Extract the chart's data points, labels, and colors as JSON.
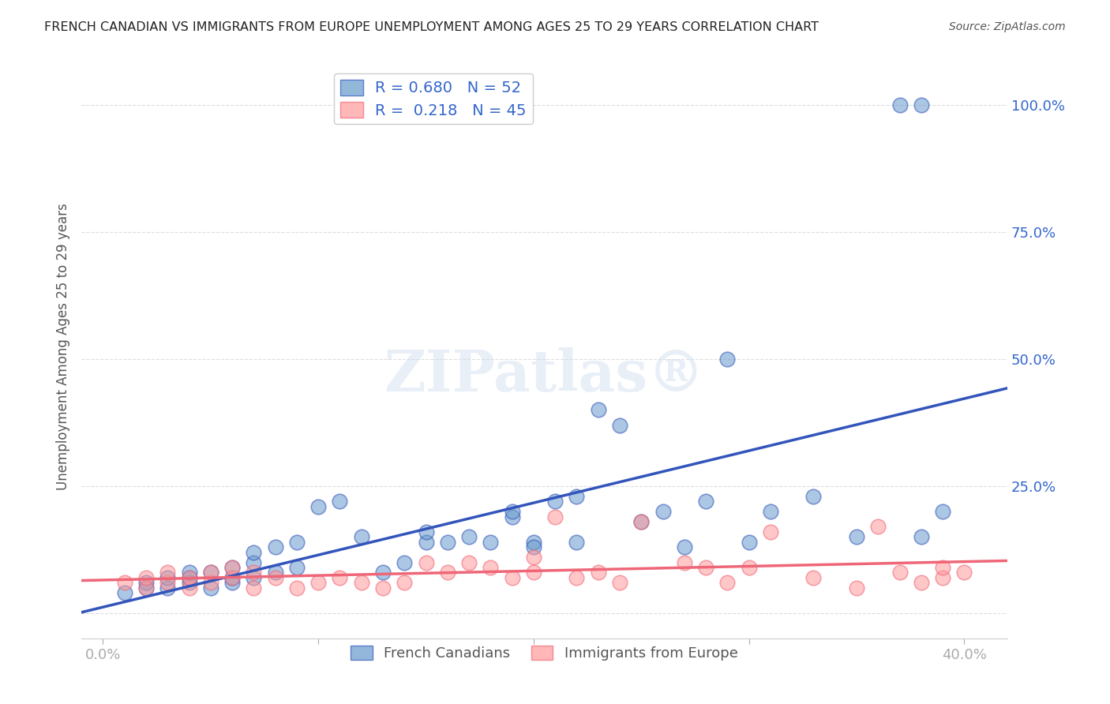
{
  "title": "FRENCH CANADIAN VS IMMIGRANTS FROM EUROPE UNEMPLOYMENT AMONG AGES 25 TO 29 YEARS CORRELATION CHART",
  "source": "Source: ZipAtlas.com",
  "xlabel_bottom": "",
  "ylabel": "Unemployment Among Ages 25 to 29 years",
  "x_ticks": [
    0.0,
    0.1,
    0.2,
    0.3,
    0.4
  ],
  "x_tick_labels": [
    "0.0%",
    "",
    "",
    "",
    "40.0%"
  ],
  "y_ticks": [
    0.0,
    0.25,
    0.5,
    0.75,
    1.0
  ],
  "y_tick_labels": [
    "",
    "25.0%",
    "50.0%",
    "75.0%",
    "100.0%"
  ],
  "legend_label1": "French Canadians",
  "legend_label2": "Immigrants from Europe",
  "r1": 0.68,
  "n1": 52,
  "r2": 0.218,
  "n2": 45,
  "blue_color": "#6699CC",
  "pink_color": "#FF9999",
  "blue_line_color": "#3355BB",
  "pink_line_color": "#EE6677",
  "title_color": "#222222",
  "axis_label_color": "#444444",
  "tick_color_right": "#5599FF",
  "background_color": "#FFFFFF",
  "grid_color": "#DDDDDD",
  "watermark": "ZIPatlas",
  "blue_x": [
    0.01,
    0.02,
    0.02,
    0.03,
    0.03,
    0.04,
    0.04,
    0.04,
    0.05,
    0.05,
    0.06,
    0.06,
    0.06,
    0.07,
    0.07,
    0.07,
    0.08,
    0.08,
    0.09,
    0.09,
    0.1,
    0.11,
    0.12,
    0.13,
    0.14,
    0.15,
    0.15,
    0.16,
    0.17,
    0.18,
    0.19,
    0.19,
    0.2,
    0.2,
    0.21,
    0.22,
    0.22,
    0.23,
    0.24,
    0.25,
    0.26,
    0.27,
    0.28,
    0.29,
    0.3,
    0.31,
    0.33,
    0.35,
    0.37,
    0.38,
    0.38,
    0.39
  ],
  "blue_y": [
    0.04,
    0.05,
    0.06,
    0.05,
    0.07,
    0.06,
    0.07,
    0.08,
    0.05,
    0.08,
    0.06,
    0.07,
    0.09,
    0.07,
    0.1,
    0.12,
    0.08,
    0.13,
    0.09,
    0.14,
    0.21,
    0.22,
    0.15,
    0.08,
    0.1,
    0.14,
    0.16,
    0.14,
    0.15,
    0.14,
    0.19,
    0.2,
    0.14,
    0.13,
    0.22,
    0.23,
    0.14,
    0.4,
    0.37,
    0.18,
    0.2,
    0.13,
    0.22,
    0.5,
    0.14,
    0.2,
    0.23,
    0.15,
    1.0,
    0.15,
    1.0,
    0.2
  ],
  "pink_x": [
    0.01,
    0.02,
    0.02,
    0.03,
    0.03,
    0.04,
    0.04,
    0.05,
    0.05,
    0.06,
    0.06,
    0.07,
    0.07,
    0.08,
    0.09,
    0.1,
    0.11,
    0.12,
    0.13,
    0.14,
    0.15,
    0.16,
    0.17,
    0.18,
    0.19,
    0.2,
    0.2,
    0.21,
    0.22,
    0.23,
    0.24,
    0.25,
    0.27,
    0.28,
    0.29,
    0.3,
    0.31,
    0.33,
    0.35,
    0.36,
    0.37,
    0.38,
    0.39,
    0.39,
    0.4
  ],
  "pink_y": [
    0.06,
    0.05,
    0.07,
    0.06,
    0.08,
    0.05,
    0.07,
    0.06,
    0.08,
    0.07,
    0.09,
    0.08,
    0.05,
    0.07,
    0.05,
    0.06,
    0.07,
    0.06,
    0.05,
    0.06,
    0.1,
    0.08,
    0.1,
    0.09,
    0.07,
    0.11,
    0.08,
    0.19,
    0.07,
    0.08,
    0.06,
    0.18,
    0.1,
    0.09,
    0.06,
    0.09,
    0.16,
    0.07,
    0.05,
    0.17,
    0.08,
    0.06,
    0.07,
    0.09,
    0.08
  ]
}
